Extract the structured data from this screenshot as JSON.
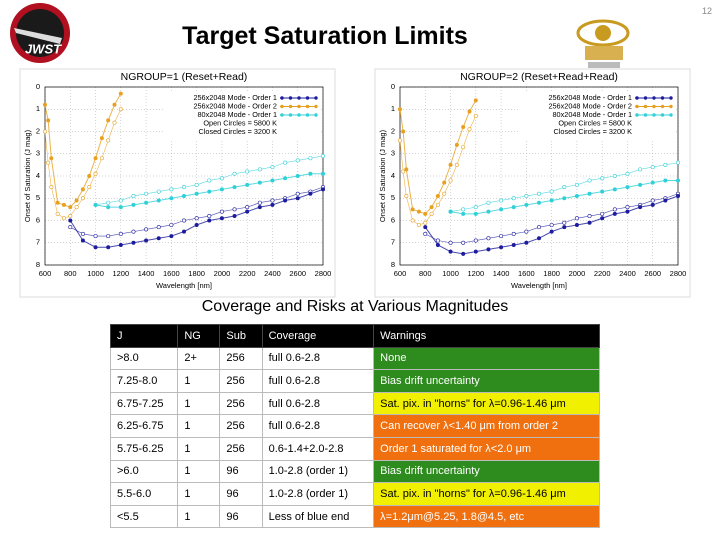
{
  "page_number": 12,
  "title": "Target Saturation Limits",
  "logo_text": "JWST",
  "chart_data": [
    {
      "type": "line",
      "title": "NGROUP=1 (Reset+Read)",
      "x_label": "Wavelength [nm]",
      "y_label": "Onset of Saturation (J mag)",
      "xlim": [
        600,
        2800
      ],
      "xticks": [
        600,
        800,
        1000,
        1200,
        1400,
        1600,
        1800,
        2000,
        2200,
        2400,
        2600,
        2800
      ],
      "ylim": [
        8,
        0
      ],
      "yticks": [
        0,
        1,
        2,
        3,
        4,
        5,
        6,
        7,
        8
      ],
      "grid": true,
      "legend": "upper right",
      "legend_notes": [
        "Open Circles = 5800 K",
        "Closed Circles = 3200 K"
      ],
      "series": [
        {
          "name": "256x2048 Mode - Order 1",
          "color": "#1c1c9c",
          "x": [
            800,
            900,
            1000,
            1100,
            1200,
            1300,
            1400,
            1500,
            1600,
            1700,
            1800,
            1900,
            2000,
            2100,
            2200,
            2300,
            2400,
            2500,
            2600,
            2700,
            2800
          ],
          "closed": [
            6.0,
            6.9,
            7.2,
            7.2,
            7.1,
            7.0,
            6.9,
            6.8,
            6.7,
            6.5,
            6.2,
            6.0,
            5.9,
            5.8,
            5.6,
            5.4,
            5.3,
            5.1,
            5.0,
            4.8,
            4.6
          ],
          "open": [
            6.3,
            6.6,
            6.7,
            6.7,
            6.6,
            6.5,
            6.4,
            6.3,
            6.2,
            6.0,
            5.9,
            5.8,
            5.6,
            5.5,
            5.4,
            5.2,
            5.1,
            5.0,
            4.8,
            4.7,
            4.5
          ]
        },
        {
          "name": "256x2048 Mode - Order 2",
          "color": "#e8a020",
          "x": [
            600,
            625,
            650,
            700,
            750,
            800,
            850,
            900,
            950,
            1000,
            1050,
            1100,
            1150,
            1200
          ],
          "closed": [
            0.8,
            1.5,
            3.2,
            5.2,
            5.3,
            5.4,
            5.1,
            4.6,
            4.0,
            3.2,
            2.3,
            1.5,
            0.8,
            0.3
          ],
          "open": [
            2.0,
            3.4,
            4.5,
            5.7,
            5.9,
            5.8,
            5.4,
            5.0,
            4.5,
            3.9,
            3.2,
            2.4,
            1.6,
            1.0
          ]
        },
        {
          "name": "80x2048 Mode - Order 1",
          "color": "#30d0d8",
          "x": [
            1000,
            1100,
            1200,
            1300,
            1400,
            1500,
            1600,
            1700,
            1800,
            1900,
            2000,
            2100,
            2200,
            2300,
            2400,
            2500,
            2600,
            2700,
            2800
          ],
          "closed": [
            5.3,
            5.4,
            5.4,
            5.3,
            5.2,
            5.1,
            5.0,
            4.9,
            4.8,
            4.7,
            4.6,
            4.5,
            4.4,
            4.3,
            4.2,
            4.1,
            4.0,
            3.9,
            3.9
          ],
          "open": [
            5.3,
            5.2,
            5.1,
            4.9,
            4.8,
            4.7,
            4.6,
            4.5,
            4.4,
            4.2,
            4.1,
            3.9,
            3.8,
            3.7,
            3.6,
            3.4,
            3.3,
            3.2,
            3.1
          ]
        }
      ]
    },
    {
      "type": "line",
      "title": "NGROUP=2 (Reset+Read+Read)",
      "x_label": "Wavelength [nm]",
      "y_label": "Onset of Saturation (J mag)",
      "xlim": [
        600,
        2800
      ],
      "xticks": [
        600,
        800,
        1000,
        1200,
        1400,
        1600,
        1800,
        2000,
        2200,
        2400,
        2600,
        2800
      ],
      "ylim": [
        8,
        0
      ],
      "yticks": [
        0,
        1,
        2,
        3,
        4,
        5,
        6,
        7,
        8
      ],
      "grid": true,
      "legend": "upper right",
      "legend_notes": [
        "Open Circles = 5800 K",
        "Closed Circles = 3200 K"
      ],
      "series": [
        {
          "name": "256x2048 Mode - Order 1",
          "color": "#1c1c9c",
          "x": [
            800,
            900,
            1000,
            1100,
            1200,
            1300,
            1400,
            1500,
            1600,
            1700,
            1800,
            1900,
            2000,
            2100,
            2200,
            2300,
            2400,
            2500,
            2600,
            2700,
            2800
          ],
          "closed": [
            6.3,
            7.1,
            7.4,
            7.5,
            7.4,
            7.3,
            7.2,
            7.1,
            7.0,
            6.8,
            6.5,
            6.3,
            6.2,
            6.1,
            5.9,
            5.7,
            5.6,
            5.4,
            5.3,
            5.1,
            4.9
          ],
          "open": [
            6.6,
            6.9,
            7.0,
            7.0,
            6.9,
            6.8,
            6.7,
            6.6,
            6.5,
            6.3,
            6.2,
            6.1,
            5.9,
            5.8,
            5.7,
            5.5,
            5.4,
            5.3,
            5.1,
            5.0,
            4.8
          ]
        },
        {
          "name": "256x2048 Mode - Order 2",
          "color": "#e8a020",
          "x": [
            600,
            625,
            650,
            700,
            750,
            800,
            850,
            900,
            950,
            1000,
            1050,
            1100,
            1150,
            1200
          ],
          "closed": [
            1.0,
            2.0,
            3.7,
            5.5,
            5.6,
            5.7,
            5.4,
            4.9,
            4.3,
            3.5,
            2.6,
            1.8,
            1.1,
            0.6
          ],
          "open": [
            2.4,
            3.8,
            4.9,
            6.0,
            6.2,
            6.1,
            5.7,
            5.3,
            4.8,
            4.2,
            3.5,
            2.7,
            1.9,
            1.3
          ]
        },
        {
          "name": "80x2048 Mode - Order 1",
          "color": "#30d0d8",
          "x": [
            1000,
            1100,
            1200,
            1300,
            1400,
            1500,
            1600,
            1700,
            1800,
            1900,
            2000,
            2100,
            2200,
            2300,
            2400,
            2500,
            2600,
            2700,
            2800
          ],
          "closed": [
            5.6,
            5.7,
            5.7,
            5.6,
            5.5,
            5.4,
            5.3,
            5.2,
            5.1,
            5.0,
            4.9,
            4.8,
            4.7,
            4.6,
            4.5,
            4.4,
            4.3,
            4.2,
            4.2
          ],
          "open": [
            5.6,
            5.5,
            5.4,
            5.2,
            5.1,
            5.0,
            4.9,
            4.8,
            4.7,
            4.5,
            4.4,
            4.2,
            4.1,
            4.0,
            3.9,
            3.7,
            3.6,
            3.5,
            3.4
          ]
        }
      ]
    }
  ],
  "table": {
    "heading": "Coverage and Risks at Various Magnitudes",
    "header": [
      "J",
      "NG",
      "Sub",
      "Coverage",
      "Warnings"
    ],
    "rows": [
      [
        ">8.0",
        "2+",
        "256",
        "full 0.6-2.8",
        "None"
      ],
      [
        "7.25-8.0",
        "1",
        "256",
        "full 0.6-2.8",
        "Bias drift uncertainty"
      ],
      [
        "6.75-7.25",
        "1",
        "256",
        "full 0.6-2.8",
        "Sat. pix. in \"horns\" for λ=0.96-1.46 μm"
      ],
      [
        "6.25-6.75",
        "1",
        "256",
        "full 0.6-2.8",
        "Can recover λ<1.40 μm from order 2"
      ],
      [
        "5.75-6.25",
        "1",
        "256",
        "0.6-1.4+2.0-2.8",
        "Order 1 saturated for λ<2.0 μm"
      ],
      [
        ">6.0",
        "1",
        "96",
        "1.0-2.8 (order 1)",
        "Bias drift uncertainty"
      ],
      [
        "5.5-6.0",
        "1",
        "96",
        "1.0-2.8 (order 1)",
        "Sat. pix. in \"horns\" for λ=0.96-1.46 μm"
      ],
      [
        "<5.5",
        "1",
        "96",
        "Less of blue end",
        "λ=1.2μm@5.25, 1.8@4.5, etc"
      ]
    ],
    "warning_colors": [
      "#2e8b1e",
      "#2e8b1e",
      "#f0f000",
      "#f07010",
      "#f07010",
      "#2e8b1e",
      "#f0f000",
      "#f07010"
    ],
    "warning_text_colors": [
      "#fff",
      "#fff",
      "#000",
      "#fff",
      "#fff",
      "#fff",
      "#000",
      "#fff"
    ]
  }
}
